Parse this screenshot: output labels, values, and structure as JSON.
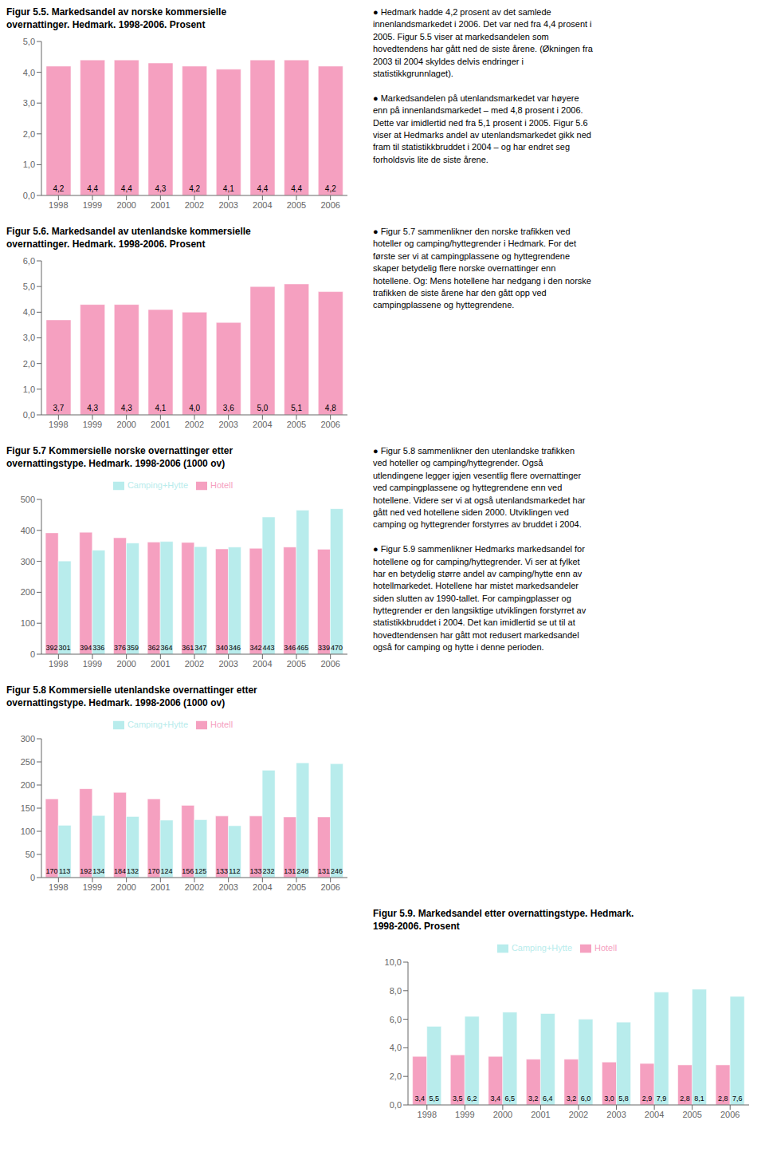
{
  "chart_data": [
    {
      "type": "bar",
      "title": "Figur 5.5. Markedsandel av norske kommersielle\novernattinger. Hedmark. 1998-2006. Prosent",
      "categories": [
        "1998",
        "1999",
        "2000",
        "2001",
        "2002",
        "2003",
        "2004",
        "2005",
        "2006"
      ],
      "values": [
        4.2,
        4.4,
        4.4,
        4.3,
        4.2,
        4.1,
        4.4,
        4.4,
        4.2
      ],
      "value_labels": [
        "4,2",
        "4,4",
        "4,4",
        "4,3",
        "4,2",
        "4,1",
        "4,4",
        "4,4",
        "4,2"
      ],
      "color": "#F5A0C0",
      "ylim": [
        0,
        5.0
      ],
      "yticks": [
        {
          "value": 0.0,
          "label": "0,0"
        },
        {
          "value": 1.0,
          "label": "1,0"
        },
        {
          "value": 2.0,
          "label": "2,0"
        },
        {
          "value": 3.0,
          "label": "3,0"
        },
        {
          "value": 4.0,
          "label": "4,0"
        },
        {
          "value": 5.0,
          "label": "5,0"
        }
      ],
      "data_labels": true,
      "grid": false,
      "annotations": [
        "● Hedmark hadde 4,2 prosent av det samlede\ninnenlandsmarkedet i 2006. Det var ned fra 4,4 prosent i\n2005. Figur 5.5 viser at markedsandelen som\nhovedtendens har gått ned de siste årene. (Økningen fra\n2003 til 2004 skyldes delvis endringer i\nstatistikkgrunnlaget).\n\n● Markedsandelen på utenlandsmarkedet var høyere\nenn på innenlandsmarkedet – med 4,8 prosent i 2006.\nDette var imidlertid ned fra 5,1 prosent i 2005. Figur 5.6\nviser at Hedmarks andel av utenlandsmarkedet gikk ned\nfram til statistikkbruddet i 2004 – og har endret seg\nforholdsvis lite de siste årene."
      ]
    },
    {
      "type": "bar",
      "title": "Figur 5.6. Markedsandel av utenlandske kommersielle\novernattinger. Hedmark. 1998-2006. Prosent",
      "categories": [
        "1998",
        "1999",
        "2000",
        "2001",
        "2002",
        "2003",
        "2004",
        "2005",
        "2006"
      ],
      "values": [
        3.7,
        4.3,
        4.3,
        4.1,
        4.0,
        3.6,
        5.0,
        5.1,
        4.8
      ],
      "value_labels": [
        "3,7",
        "4,3",
        "4,3",
        "4,1",
        "4,0",
        "3,6",
        "5,0",
        "5,1",
        "4,8"
      ],
      "color": "#F5A0C0",
      "ylim": [
        0,
        6.0
      ],
      "yticks": [
        {
          "value": 0.0,
          "label": "0,0"
        },
        {
          "value": 1.0,
          "label": "1,0"
        },
        {
          "value": 2.0,
          "label": "2,0"
        },
        {
          "value": 3.0,
          "label": "3,0"
        },
        {
          "value": 4.0,
          "label": "4,0"
        },
        {
          "value": 5.0,
          "label": "5,0"
        },
        {
          "value": 6.0,
          "label": "6,0"
        }
      ],
      "data_labels": true,
      "grid": false,
      "annotations": [
        "● Figur 5.7 sammenlikner den norske trafikken ved\nhoteller og camping/hyttegrender i Hedmark. For det\nførste ser vi at campingplassene og hyttegrendene\nskaper betydelig flere norske overnattinger enn\nhotellene. Og: Mens hotellene har nedgang i den norske\ntrafikken de siste årene har den gått opp ved\ncampingplassene og hyttegrendene."
      ]
    },
    {
      "type": "bar",
      "title": "Figur 5.7 Kommersielle norske overnattinger etter\novernattingstype. Hedmark. 1998-2006 (1000 ov)",
      "categories": [
        "1998",
        "1999",
        "2000",
        "2001",
        "2002",
        "2003",
        "2004",
        "2005",
        "2006"
      ],
      "series": [
        {
          "name": "Hotell",
          "color": "#F5A0C0",
          "values": [
            392,
            394,
            376,
            362,
            361,
            340,
            342,
            346,
            339
          ]
        },
        {
          "name": "Camping+Hytte",
          "color": "#B8ECEC",
          "values": [
            301,
            336,
            359,
            364,
            347,
            346,
            443,
            465,
            470
          ]
        }
      ],
      "ylim": [
        0,
        500
      ],
      "yticks": [
        0,
        100,
        200,
        300,
        400,
        500
      ],
      "data_labels": true,
      "grid": false,
      "legend": "top",
      "annotations": [
        "● Figur 5.8 sammenlikner den utenlandske trafikken\nved hoteller og camping/hyttegrender. Også\nutlendingene legger igjen vesentlig flere overnattinger\nved campingplassene og hyttegrendene enn ved\nhotellene. Videre ser vi at også utenlandsmarkedet har\ngått ned ved hotellene siden 2000. Utviklingen ved\ncamping og hyttegrender forstyrres av bruddet i 2004.\n\n● Figur 5.9 sammenlikner Hedmarks markedsandel for\nhotellene og for camping/hyttegrender. Vi ser at fylket\nhar en betydelig større andel av camping/hytte enn av\nhotellmarkedet. Hotellene har mistet markedsandeler\nsiden slutten av 1990-tallet. For campingplasser og\nhyttegrender er den langsiktige utviklingen forstyrret av\nstatistikkbruddet i 2004. Det kan imidlertid se ut til at\nhovedtendensen har gått mot redusert markedsandel\nogså for camping og hytte i denne perioden."
      ]
    },
    {
      "type": "bar",
      "title": "Figur 5.8 Kommersielle utenlandske overnattinger etter\novernattingstype. Hedmark. 1998-2006 (1000 ov)",
      "categories": [
        "1998",
        "1999",
        "2000",
        "2001",
        "2002",
        "2003",
        "2004",
        "2005",
        "2006"
      ],
      "series": [
        {
          "name": "Hotell",
          "color": "#F5A0C0",
          "values": [
            170,
            192,
            184,
            170,
            156,
            133,
            133,
            131,
            131
          ]
        },
        {
          "name": "Camping+Hytte",
          "color": "#B8ECEC",
          "values": [
            113,
            134,
            132,
            124,
            125,
            112,
            232,
            248,
            246
          ]
        }
      ],
      "ylim": [
        0,
        300
      ],
      "yticks": [
        0,
        50,
        100,
        150,
        200,
        250,
        300
      ],
      "data_labels": true,
      "grid": false,
      "legend": "top"
    },
    {
      "type": "bar",
      "title": "Figur 5.9. Markedsandel etter overnattingstype. Hedmark.\n1998-2006. Prosent",
      "categories": [
        "1998",
        "1999",
        "2000",
        "2001",
        "2002",
        "2003",
        "2004",
        "2005",
        "2006"
      ],
      "series": [
        {
          "name": "Hotell",
          "color": "#F5A0C0",
          "values": [
            3.4,
            3.5,
            3.4,
            3.2,
            3.2,
            3.0,
            2.9,
            2.8,
            2.8
          ],
          "value_labels": [
            "3,4",
            "3,5",
            "3,4",
            "3,2",
            "3,2",
            "3,0",
            "2,9",
            "2,8",
            "2,8"
          ]
        },
        {
          "name": "Camping+Hytte",
          "color": "#B8ECEC",
          "values": [
            5.5,
            6.2,
            6.5,
            6.4,
            6.0,
            5.8,
            7.9,
            8.1,
            7.6
          ],
          "value_labels": [
            "5,5",
            "6,2",
            "6,5",
            "6,4",
            "6,0",
            "5,8",
            "7,9",
            "8,1",
            "7,6"
          ]
        }
      ],
      "ylim": [
        0,
        10.0
      ],
      "yticks": [
        {
          "value": 0.0,
          "label": "0,0"
        },
        {
          "value": 2.0,
          "label": "2,0"
        },
        {
          "value": 4.0,
          "label": "4,0"
        },
        {
          "value": 6.0,
          "label": "6,0"
        },
        {
          "value": 8.0,
          "label": "8,0"
        },
        {
          "value": 10.0,
          "label": "10,0"
        }
      ],
      "data_labels": true,
      "grid": false,
      "legend": "top"
    }
  ]
}
